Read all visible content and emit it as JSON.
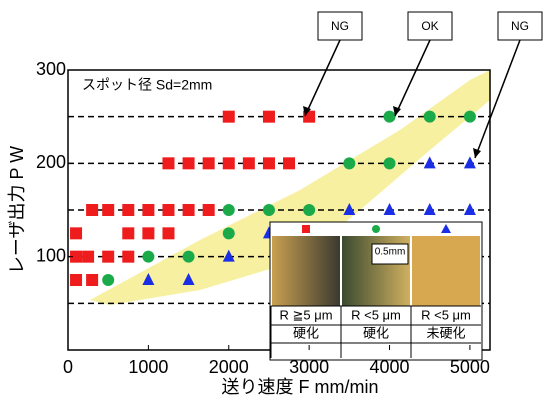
{
  "chart_data": {
    "type": "scatter",
    "annotation": "スポット径 Sd=2mm",
    "xlabel": "送り速度 F mm/min",
    "ylabel": "レーザ出力 P W",
    "xlim": [
      0,
      5250
    ],
    "ylim": [
      0,
      300
    ],
    "xticks": [
      0,
      1000,
      2000,
      3000,
      4000,
      5000
    ],
    "yticks": [
      100,
      200,
      300
    ],
    "reference_lines": [
      50,
      100,
      150,
      200,
      250
    ],
    "series": [
      {
        "marker": "square",
        "color": "#ee1c1c",
        "x": [
          2000,
          2500,
          3000,
          1250,
          1500,
          1750,
          2000,
          2250,
          2500,
          2750,
          300,
          500,
          750,
          1000,
          1250,
          1500,
          1750,
          100,
          750,
          1000,
          1250,
          100,
          250,
          500,
          750,
          100,
          300
        ],
        "values": [
          250,
          250,
          250,
          200,
          200,
          200,
          200,
          200,
          200,
          200,
          150,
          150,
          150,
          150,
          150,
          150,
          150,
          125,
          125,
          125,
          125,
          100,
          100,
          100,
          100,
          75,
          75
        ]
      },
      {
        "marker": "circle",
        "color": "#1aaa4a",
        "x": [
          4000,
          4500,
          5000,
          3500,
          4000,
          2000,
          2500,
          3000,
          2000,
          1000,
          1500,
          500
        ],
        "values": [
          250,
          250,
          250,
          200,
          200,
          150,
          150,
          150,
          125,
          100,
          100,
          75
        ]
      },
      {
        "marker": "triangle",
        "color": "#1a2ee6",
        "x": [
          4500,
          5000,
          3500,
          4000,
          4500,
          5000,
          2500,
          2000,
          1000,
          1500
        ],
        "values": [
          200,
          200,
          150,
          150,
          150,
          150,
          125,
          100,
          75,
          75
        ]
      }
    ],
    "callouts": [
      "NG",
      "OK",
      "NG"
    ]
  },
  "inset": {
    "scale": "0.5mm",
    "columns": [
      {
        "label": "R ≧5 μm",
        "result": "硬化"
      },
      {
        "label": "R <5 μm",
        "result": "硬化"
      },
      {
        "label": "R <5 μm",
        "result": "未硬化"
      }
    ]
  }
}
